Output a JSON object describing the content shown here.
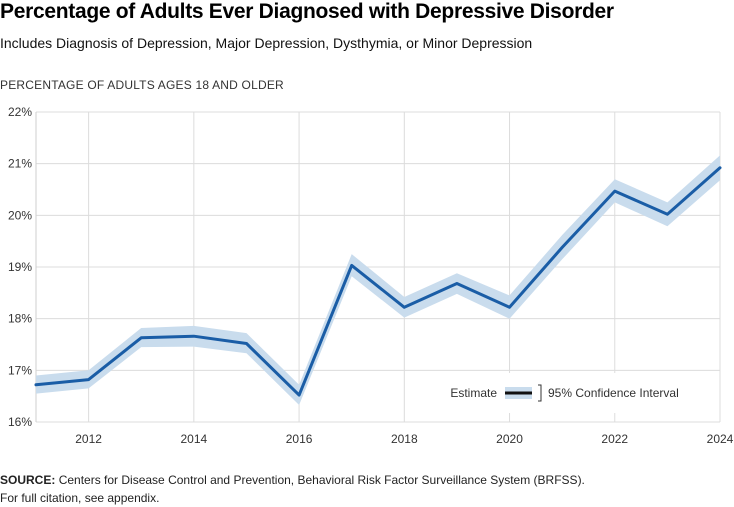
{
  "chart_data": {
    "type": "line",
    "title": "Percentage of Adults Ever Diagnosed with Depressive Disorder",
    "subtitle": "Includes Diagnosis of Depression, Major Depression, Dysthymia, or Minor Depression",
    "ylabel": "PERCENTAGE OF ADULTS AGES 18 AND OLDER",
    "xlabel": "",
    "x": [
      2011,
      2012,
      2013,
      2014,
      2015,
      2016,
      2017,
      2018,
      2019,
      2020,
      2021,
      2022,
      2023,
      2024
    ],
    "series": [
      {
        "name": "Estimate",
        "values": [
          16.72,
          16.82,
          17.63,
          17.66,
          17.52,
          16.52,
          19.03,
          18.22,
          18.68,
          18.22,
          19.38,
          20.47,
          20.02,
          20.92
        ],
        "ci_lower": [
          16.55,
          16.65,
          17.45,
          17.46,
          17.33,
          16.33,
          18.82,
          18.02,
          18.48,
          18.0,
          19.15,
          20.25,
          19.79,
          20.68
        ],
        "ci_upper": [
          16.9,
          17.0,
          17.82,
          17.86,
          17.72,
          16.72,
          19.25,
          18.42,
          18.88,
          18.45,
          19.62,
          20.7,
          20.25,
          21.16
        ]
      }
    ],
    "xlim": [
      2011,
      2024
    ],
    "ylim": [
      16,
      22
    ],
    "xticks": [
      "2012",
      "2014",
      "2016",
      "2018",
      "2020",
      "2022",
      "2024"
    ],
    "yticks": [
      "16%",
      "17%",
      "18%",
      "19%",
      "20%",
      "21%",
      "22%"
    ],
    "grid": true,
    "legend": {
      "estimate_label": "Estimate",
      "ci_label": "95% Confidence Interval",
      "placement": "bottom-right"
    },
    "colors": {
      "line": "#1a5da6",
      "band": "#c9dced",
      "grid": "#dcdcdc"
    }
  },
  "source": {
    "label": "SOURCE:",
    "text": "Centers for Disease Control and Prevention, Behavioral Risk Factor Surveillance System (BRFSS).",
    "note": "For full citation, see appendix."
  }
}
